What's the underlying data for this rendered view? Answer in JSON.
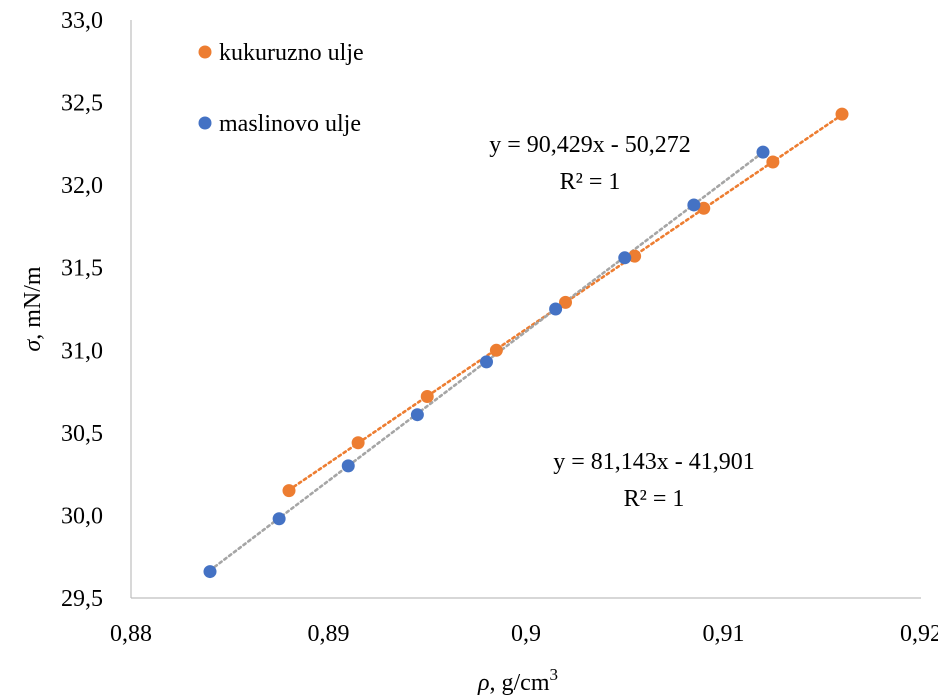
{
  "chart_data": {
    "type": "scatter",
    "xlabel": {
      "symbol": "ρ",
      "unit": ", g/cm",
      "sup": "3"
    },
    "ylabel": {
      "symbol": "σ",
      "unit": ", mN/m"
    },
    "xlim": [
      0.88,
      0.92
    ],
    "ylim": [
      29.5,
      33.0
    ],
    "x_ticks": [
      0.88,
      0.89,
      0.9,
      0.91,
      0.92
    ],
    "x_tick_labels": [
      "0,88",
      "0,89",
      "0,9",
      "0,91",
      "0,92"
    ],
    "y_ticks": [
      29.5,
      30.0,
      30.5,
      31.0,
      31.5,
      32.0,
      32.5,
      33.0
    ],
    "y_tick_labels": [
      "29,5",
      "30,0",
      "30,5",
      "31,0",
      "31,5",
      "32,0",
      "32,5",
      "33,0"
    ],
    "grid": false,
    "legend_position": "top-left",
    "series": [
      {
        "name": "kukuruzno ulje",
        "color": "#ED7D31",
        "x": [
          0.888,
          0.8915,
          0.895,
          0.8985,
          0.902,
          0.9055,
          0.909,
          0.9125,
          0.916
        ],
        "y": [
          30.15,
          30.44,
          30.72,
          31.0,
          31.29,
          31.57,
          31.86,
          32.14,
          32.43
        ],
        "trendline": {
          "slope": 81.143,
          "intercept": -41.901,
          "equation": "y = 81,143x - 41,901",
          "r2": "R² = 1"
        }
      },
      {
        "name": "maslinovo ulje",
        "color": "#4472C4",
        "x": [
          0.884,
          0.8875,
          0.891,
          0.8945,
          0.898,
          0.9015,
          0.905,
          0.9085,
          0.912
        ],
        "y": [
          29.66,
          29.98,
          30.3,
          30.61,
          30.93,
          31.25,
          31.56,
          31.88,
          32.2
        ],
        "trendline": {
          "slope": 90.429,
          "intercept": -50.272,
          "equation": "y = 90,429x - 50,272",
          "r2": "R² = 1"
        }
      }
    ]
  },
  "colors": {
    "axis": "#BFBFBF",
    "trend_orange": "#ED7D31",
    "trend_gray": "#A5A5A5"
  }
}
